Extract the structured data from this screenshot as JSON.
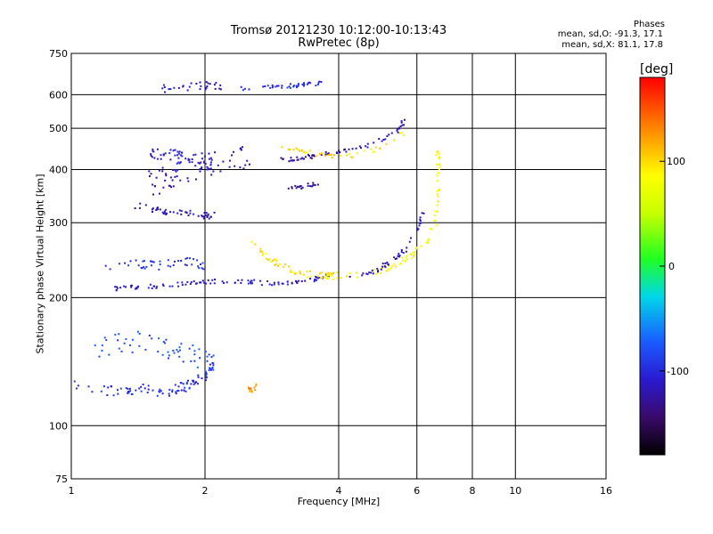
{
  "chart_data": {
    "type": "scatter",
    "title": "Tromsø 20121230 10:12:00-10:13:43",
    "subtitle": "RwPretec (8p)",
    "xlabel": "Frequency [MHz]",
    "ylabel": "Stationary phase Virtual Height [km]",
    "x_scale": "log",
    "y_scale": "log",
    "xlim": [
      1,
      16
    ],
    "ylim": [
      75,
      750
    ],
    "x_ticks": [
      1,
      2,
      4,
      6,
      8,
      10,
      16
    ],
    "y_ticks": [
      75,
      100,
      200,
      300,
      400,
      500,
      600,
      750
    ],
    "grid": true,
    "stats": {
      "header": "Phases",
      "line1": "mean, sd,O: -91.3, 17.1",
      "line2": "mean, sd,X:  81.1, 17.8"
    },
    "colorbar": {
      "unit": "[deg]",
      "min": -180,
      "max": 180,
      "ticks": [
        100,
        0,
        -100
      ]
    },
    "series": [
      {
        "x": [
          1.0,
          1.2,
          1.4,
          1.6,
          1.8,
          2.0,
          2.1
        ],
        "y": [
          125,
          120,
          122,
          120,
          123,
          130,
          140
        ],
        "phase": -95,
        "spread": 12,
        "n": 90
      },
      {
        "x": [
          1.1,
          1.3,
          1.5,
          1.7,
          1.9,
          2.1
        ],
        "y": [
          150,
          155,
          160,
          150,
          145,
          140
        ],
        "phase": -80,
        "spread": 25,
        "n": 60
      },
      {
        "x": [
          1.25,
          1.5,
          1.8,
          2.0,
          2.5,
          3.0,
          3.5,
          3.8
        ],
        "y": [
          210,
          212,
          215,
          218,
          218,
          215,
          220,
          225
        ],
        "phase": -110,
        "spread": 5,
        "n": 110
      },
      {
        "x": [
          1.2,
          1.4,
          1.6,
          1.8,
          2.0
        ],
        "y": [
          235,
          240,
          238,
          245,
          235
        ],
        "phase": -95,
        "spread": 10,
        "n": 45
      },
      {
        "x": [
          1.35,
          1.6,
          1.8,
          2.0,
          2.1
        ],
        "y": [
          330,
          320,
          315,
          312,
          312
        ],
        "phase": -115,
        "spread": 8,
        "n": 50
      },
      {
        "x": [
          1.5,
          1.7,
          1.9,
          2.1
        ],
        "y": [
          440,
          430,
          420,
          410
        ],
        "phase": -110,
        "spread": 15,
        "n": 60
      },
      {
        "x": [
          1.55,
          1.8,
          2.0,
          2.2
        ],
        "y": [
          620,
          625,
          630,
          625
        ],
        "phase": -115,
        "spread": 10,
        "n": 30
      },
      {
        "x": [
          2.4,
          2.8,
          3.2,
          3.7
        ],
        "y": [
          620,
          625,
          630,
          640
        ],
        "phase": -100,
        "spread": 5,
        "n": 40
      },
      {
        "x": [
          2.9,
          3.2,
          3.5,
          3.8
        ],
        "y": [
          420,
          425,
          430,
          440
        ],
        "phase": -130,
        "spread": 5,
        "n": 30
      },
      {
        "x": [
          3.9,
          4.2,
          4.6,
          5.0,
          5.4,
          5.6
        ],
        "y": [
          440,
          445,
          455,
          470,
          490,
          520
        ],
        "phase": -120,
        "spread": 5,
        "n": 35
      },
      {
        "x": [
          3.1,
          3.3,
          3.6
        ],
        "y": [
          360,
          365,
          370
        ],
        "phase": -125,
        "spread": 5,
        "n": 20
      },
      {
        "x": [
          2.5,
          2.8,
          3.2,
          3.6,
          4.0
        ],
        "y": [
          280,
          245,
          230,
          225,
          225
        ],
        "phase": 95,
        "spread": 8,
        "n": 60
      },
      {
        "x": [
          4.0,
          4.6,
          5.2,
          5.8,
          6.3,
          6.6,
          6.7,
          6.7,
          6.7
        ],
        "y": [
          225,
          226,
          235,
          250,
          270,
          300,
          340,
          400,
          450
        ],
        "phase": 85,
        "spread": 6,
        "n": 80
      },
      {
        "x": [
          4.2,
          4.8,
          5.3,
          5.7,
          6.0,
          6.2
        ],
        "y": [
          225,
          230,
          245,
          262,
          285,
          320
        ],
        "phase": -115,
        "spread": 5,
        "n": 50
      },
      {
        "x": [
          3.0,
          3.4,
          3.8,
          4.3,
          4.8,
          5.2,
          5.6
        ],
        "y": [
          450,
          440,
          430,
          430,
          445,
          465,
          490
        ],
        "phase": 100,
        "spread": 5,
        "n": 40
      },
      {
        "x": [
          1.5,
          1.6,
          1.8,
          2.3,
          2.5
        ],
        "y": [
          370,
          380,
          400,
          420,
          430
        ],
        "phase": -120,
        "spread": 30,
        "n": 60
      },
      {
        "x": [
          2.5,
          2.55,
          2.6
        ],
        "y": [
          122,
          120,
          125
        ],
        "phase": 130,
        "spread": 5,
        "n": 12
      }
    ]
  }
}
